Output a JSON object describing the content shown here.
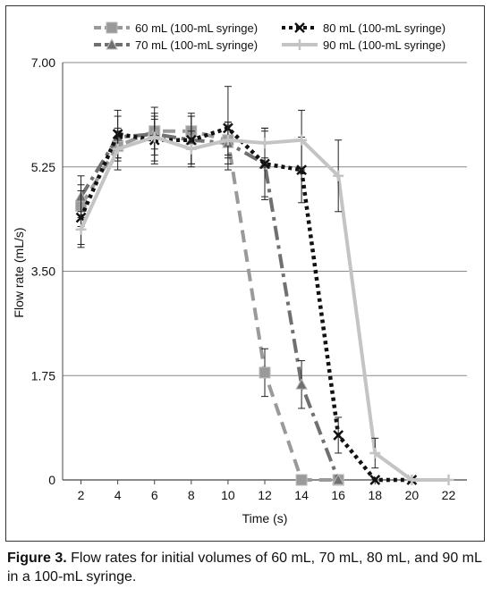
{
  "chart_data": {
    "type": "line",
    "xlabel": "Time (s)",
    "ylabel": "Flow rate (mL/s)",
    "xlim": [
      1,
      23
    ],
    "ylim": [
      0,
      7
    ],
    "x_ticks": [
      2,
      4,
      6,
      8,
      10,
      12,
      14,
      16,
      18,
      20,
      22
    ],
    "y_ticks": [
      0,
      1.75,
      3.5,
      5.25,
      7.0
    ],
    "y_tick_labels": [
      "0",
      "1.75",
      "3.50",
      "5.25",
      "7.00"
    ],
    "grid": "horizontal",
    "legend_position": "top",
    "series": [
      {
        "name": "60 mL (100-mL syringe)",
        "color": "#9a9a9a",
        "dash": "dash",
        "marker": "square",
        "x": [
          2,
          4,
          6,
          8,
          10,
          12,
          14,
          16
        ],
        "y": [
          4.6,
          5.6,
          5.85,
          5.85,
          5.7,
          1.8,
          0,
          0
        ],
        "err": [
          0.35,
          0.25,
          0.3,
          0.3,
          0.3,
          0.4,
          0,
          0
        ]
      },
      {
        "name": "70 mL (100-mL syringe)",
        "color": "#707070",
        "dash": "dashdot",
        "marker": "triangle",
        "x": [
          2,
          4,
          6,
          8,
          10,
          12,
          14,
          16
        ],
        "y": [
          4.75,
          5.75,
          5.8,
          5.7,
          5.65,
          5.3,
          1.6,
          0
        ],
        "err": [
          0.35,
          0.35,
          0.45,
          0.4,
          0.35,
          0.55,
          0.4,
          0
        ]
      },
      {
        "name": "80 mL (100-mL syringe)",
        "color": "#111111",
        "dash": "dot",
        "marker": "x",
        "x": [
          2,
          4,
          6,
          8,
          10,
          12,
          14,
          16,
          18,
          20
        ],
        "y": [
          4.4,
          5.8,
          5.7,
          5.7,
          5.9,
          5.3,
          5.2,
          0.75,
          0,
          0
        ],
        "err": [
          0.45,
          0.4,
          0.4,
          0.4,
          0.7,
          0.6,
          0.55,
          0.3,
          0,
          0
        ]
      },
      {
        "name": "90 mL (100-mL syringe)",
        "color": "#c4c4c4",
        "dash": "solid",
        "marker": "plus",
        "x": [
          2,
          4,
          6,
          8,
          10,
          12,
          14,
          16,
          18,
          20,
          22
        ],
        "y": [
          4.2,
          5.55,
          5.75,
          5.55,
          5.7,
          5.65,
          5.7,
          5.1,
          0.45,
          0,
          0
        ],
        "err": [
          0.3,
          0.35,
          0.3,
          0.3,
          0.25,
          0.25,
          0.5,
          0.6,
          0.25,
          0,
          0
        ]
      }
    ]
  },
  "caption": {
    "label": "Figure 3.",
    "text": " Flow rates for initial volumes of 60 mL, 70 mL, 80 mL, and 90 mL in a 100-mL syringe."
  }
}
